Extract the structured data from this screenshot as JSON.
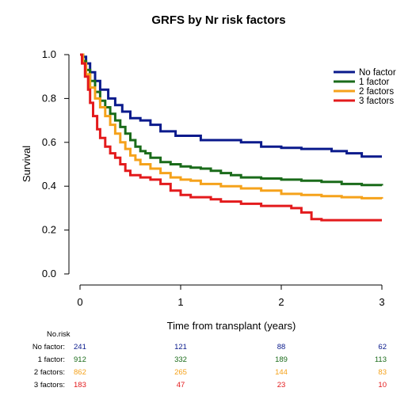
{
  "chart_data": {
    "type": "line",
    "title": "GRFS by Nr risk factors",
    "xlabel": "Time from transplant (years)",
    "ylabel": "Survival",
    "xlim": [
      0,
      3
    ],
    "ylim": [
      0,
      1
    ],
    "x_ticks": [
      "0",
      "1",
      "2",
      "3"
    ],
    "y_ticks": [
      "0.0",
      "0.2",
      "0.4",
      "0.6",
      "0.8",
      "1.0"
    ],
    "grid": false,
    "legend_position": "top-right",
    "series": [
      {
        "name": "No factor",
        "color": "#0a1a8c",
        "points": [
          [
            0,
            1.0
          ],
          [
            0.03,
            0.99
          ],
          [
            0.06,
            0.96
          ],
          [
            0.1,
            0.92
          ],
          [
            0.15,
            0.88
          ],
          [
            0.2,
            0.84
          ],
          [
            0.28,
            0.8
          ],
          [
            0.35,
            0.77
          ],
          [
            0.42,
            0.74
          ],
          [
            0.5,
            0.71
          ],
          [
            0.6,
            0.7
          ],
          [
            0.7,
            0.68
          ],
          [
            0.8,
            0.65
          ],
          [
            0.95,
            0.63
          ],
          [
            1.1,
            0.63
          ],
          [
            1.2,
            0.61
          ],
          [
            1.4,
            0.61
          ],
          [
            1.6,
            0.6
          ],
          [
            1.8,
            0.58
          ],
          [
            2.0,
            0.575
          ],
          [
            2.2,
            0.57
          ],
          [
            2.5,
            0.56
          ],
          [
            2.65,
            0.55
          ],
          [
            2.8,
            0.535
          ],
          [
            3.0,
            0.535
          ]
        ]
      },
      {
        "name": "1 factor",
        "color": "#1a6b1a",
        "points": [
          [
            0,
            1.0
          ],
          [
            0.03,
            0.97
          ],
          [
            0.06,
            0.93
          ],
          [
            0.1,
            0.88
          ],
          [
            0.15,
            0.83
          ],
          [
            0.2,
            0.79
          ],
          [
            0.25,
            0.76
          ],
          [
            0.3,
            0.73
          ],
          [
            0.35,
            0.7
          ],
          [
            0.4,
            0.67
          ],
          [
            0.45,
            0.64
          ],
          [
            0.5,
            0.61
          ],
          [
            0.55,
            0.58
          ],
          [
            0.6,
            0.56
          ],
          [
            0.65,
            0.55
          ],
          [
            0.7,
            0.53
          ],
          [
            0.8,
            0.51
          ],
          [
            0.9,
            0.5
          ],
          [
            1.0,
            0.49
          ],
          [
            1.1,
            0.485
          ],
          [
            1.2,
            0.48
          ],
          [
            1.3,
            0.47
          ],
          [
            1.4,
            0.46
          ],
          [
            1.5,
            0.45
          ],
          [
            1.6,
            0.44
          ],
          [
            1.8,
            0.435
          ],
          [
            2.0,
            0.43
          ],
          [
            2.2,
            0.425
          ],
          [
            2.4,
            0.42
          ],
          [
            2.6,
            0.41
          ],
          [
            2.8,
            0.405
          ],
          [
            3.0,
            0.403
          ]
        ]
      },
      {
        "name": "2 factors",
        "color": "#f5a21b",
        "points": [
          [
            0,
            1.0
          ],
          [
            0.03,
            0.96
          ],
          [
            0.06,
            0.91
          ],
          [
            0.1,
            0.85
          ],
          [
            0.15,
            0.8
          ],
          [
            0.2,
            0.76
          ],
          [
            0.25,
            0.72
          ],
          [
            0.3,
            0.68
          ],
          [
            0.35,
            0.64
          ],
          [
            0.4,
            0.6
          ],
          [
            0.45,
            0.57
          ],
          [
            0.5,
            0.54
          ],
          [
            0.55,
            0.52
          ],
          [
            0.6,
            0.5
          ],
          [
            0.7,
            0.48
          ],
          [
            0.8,
            0.46
          ],
          [
            0.9,
            0.44
          ],
          [
            1.0,
            0.43
          ],
          [
            1.1,
            0.425
          ],
          [
            1.2,
            0.41
          ],
          [
            1.4,
            0.4
          ],
          [
            1.6,
            0.39
          ],
          [
            1.8,
            0.38
          ],
          [
            2.0,
            0.365
          ],
          [
            2.2,
            0.36
          ],
          [
            2.4,
            0.355
          ],
          [
            2.6,
            0.35
          ],
          [
            2.8,
            0.345
          ],
          [
            3.0,
            0.343
          ]
        ]
      },
      {
        "name": "3 factors",
        "color": "#e31a1c",
        "points": [
          [
            0,
            1.0
          ],
          [
            0.02,
            0.96
          ],
          [
            0.05,
            0.9
          ],
          [
            0.08,
            0.84
          ],
          [
            0.1,
            0.78
          ],
          [
            0.13,
            0.72
          ],
          [
            0.17,
            0.66
          ],
          [
            0.2,
            0.62
          ],
          [
            0.25,
            0.58
          ],
          [
            0.3,
            0.55
          ],
          [
            0.35,
            0.53
          ],
          [
            0.4,
            0.5
          ],
          [
            0.45,
            0.47
          ],
          [
            0.5,
            0.45
          ],
          [
            0.6,
            0.44
          ],
          [
            0.7,
            0.43
          ],
          [
            0.8,
            0.41
          ],
          [
            0.9,
            0.38
          ],
          [
            1.0,
            0.36
          ],
          [
            1.1,
            0.35
          ],
          [
            1.2,
            0.35
          ],
          [
            1.3,
            0.34
          ],
          [
            1.4,
            0.33
          ],
          [
            1.5,
            0.33
          ],
          [
            1.6,
            0.32
          ],
          [
            1.8,
            0.31
          ],
          [
            2.0,
            0.31
          ],
          [
            2.1,
            0.3
          ],
          [
            2.2,
            0.28
          ],
          [
            2.3,
            0.25
          ],
          [
            2.4,
            0.245
          ],
          [
            3.0,
            0.245
          ]
        ]
      }
    ],
    "risk_table": {
      "header": "No.risk",
      "times": [
        0,
        1,
        2,
        3
      ],
      "rows": [
        {
          "label": "No factor:",
          "color": "#0a1a8c",
          "values": [
            "241",
            "121",
            "88",
            "62"
          ]
        },
        {
          "label": "1 factor:",
          "color": "#1a6b1a",
          "values": [
            "912",
            "332",
            "189",
            "113"
          ]
        },
        {
          "label": "2 factors:",
          "color": "#f5a21b",
          "values": [
            "862",
            "265",
            "144",
            "83"
          ]
        },
        {
          "label": "3 factors:",
          "color": "#e31a1c",
          "values": [
            "183",
            "47",
            "23",
            "10"
          ]
        }
      ]
    }
  }
}
